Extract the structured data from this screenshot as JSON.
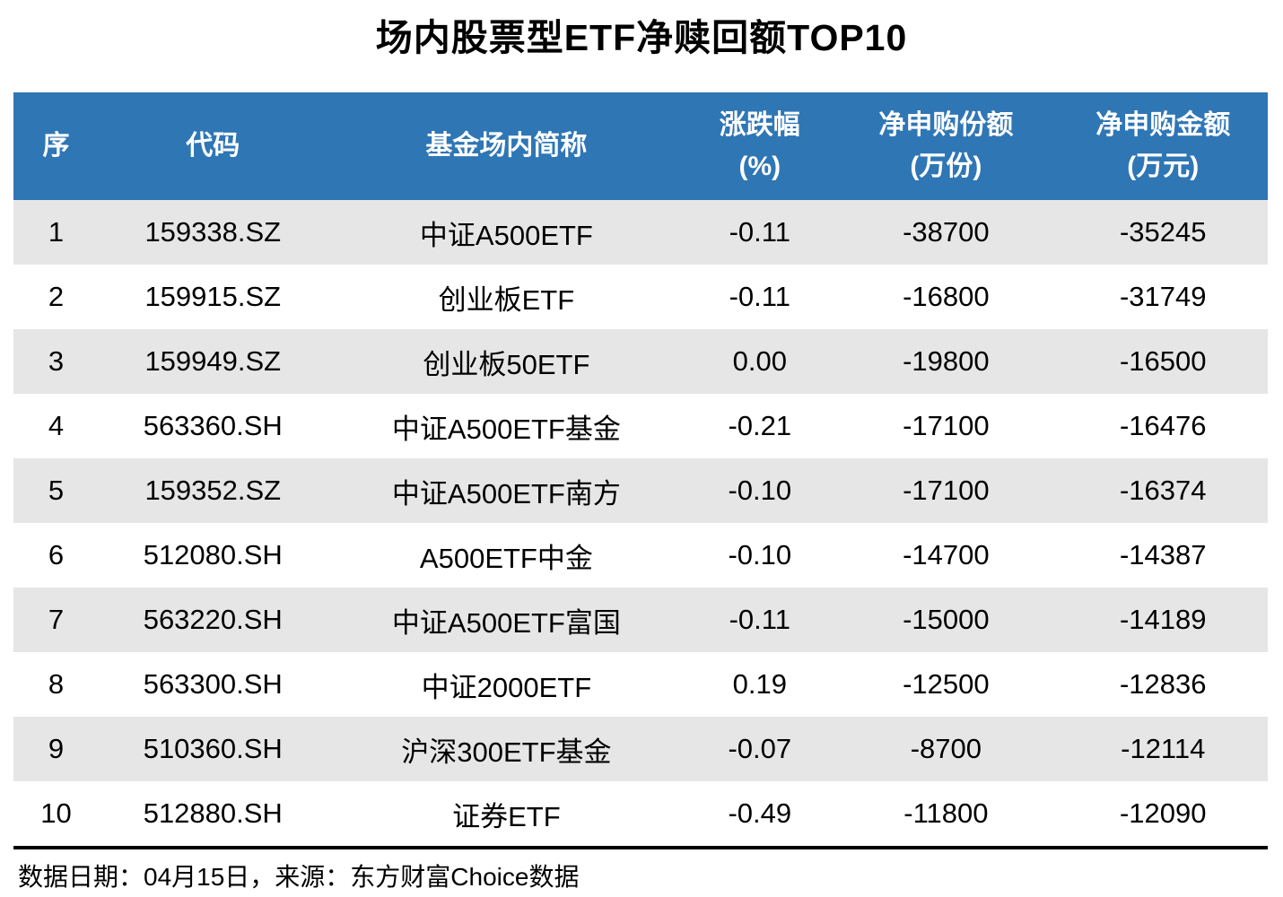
{
  "title": "场内股票型ETF净赎回额TOP10",
  "colors": {
    "header_bg": "#2F76B5",
    "header_text": "#FFFFFF",
    "stripe_bg": "#E7E6E6",
    "body_text": "#000000",
    "divider": "#000000"
  },
  "table": {
    "column_keys": [
      "rank",
      "code",
      "name",
      "change",
      "net_shares",
      "net_amount"
    ],
    "columns": [
      {
        "line1": "序",
        "line2": ""
      },
      {
        "line1": "代码",
        "line2": ""
      },
      {
        "line1": "基金场内简称",
        "line2": ""
      },
      {
        "line1": "涨跌幅",
        "line2": "(%)"
      },
      {
        "line1": "净申购份额",
        "line2": "(万份)"
      },
      {
        "line1": "净申购金额",
        "line2": "(万元)"
      }
    ],
    "rows": [
      [
        "1",
        "159338.SZ",
        "中证A500ETF",
        "-0.11",
        "-38700",
        "-35245"
      ],
      [
        "2",
        "159915.SZ",
        "创业板ETF",
        "-0.11",
        "-16800",
        "-31749"
      ],
      [
        "3",
        "159949.SZ",
        "创业板50ETF",
        "0.00",
        "-19800",
        "-16500"
      ],
      [
        "4",
        "563360.SH",
        "中证A500ETF基金",
        "-0.21",
        "-17100",
        "-16476"
      ],
      [
        "5",
        "159352.SZ",
        "中证A500ETF南方",
        "-0.10",
        "-17100",
        "-16374"
      ],
      [
        "6",
        "512080.SH",
        "A500ETF中金",
        "-0.10",
        "-14700",
        "-14387"
      ],
      [
        "7",
        "563220.SH",
        "中证A500ETF富国",
        "-0.11",
        "-15000",
        "-14189"
      ],
      [
        "8",
        "563300.SH",
        "中证2000ETF",
        "0.19",
        "-12500",
        "-12836"
      ],
      [
        "9",
        "510360.SH",
        "沪深300ETF基金",
        "-0.07",
        "-8700",
        "-12114"
      ],
      [
        "10",
        "512880.SH",
        "证券ETF",
        "-0.49",
        "-11800",
        "-12090"
      ]
    ]
  },
  "footer": {
    "note": "数据日期：04月15日，来源：东方财富Choice数据"
  },
  "chart_data": {
    "type": "table",
    "title": "场内股票型ETF净赎回额TOP10",
    "columns": [
      "序",
      "代码",
      "基金场内简称",
      "涨跌幅(%)",
      "净申购份额(万份)",
      "净申购金额(万元)"
    ],
    "rows": [
      [
        1,
        "159338.SZ",
        "中证A500ETF",
        -0.11,
        -38700,
        -35245
      ],
      [
        2,
        "159915.SZ",
        "创业板ETF",
        -0.11,
        -16800,
        -31749
      ],
      [
        3,
        "159949.SZ",
        "创业板50ETF",
        0.0,
        -19800,
        -16500
      ],
      [
        4,
        "563360.SH",
        "中证A500ETF基金",
        -0.21,
        -17100,
        -16476
      ],
      [
        5,
        "159352.SZ",
        "中证A500ETF南方",
        -0.1,
        -17100,
        -16374
      ],
      [
        6,
        "512080.SH",
        "A500ETF中金",
        -0.1,
        -14700,
        -14387
      ],
      [
        7,
        "563220.SH",
        "中证A500ETF富国",
        -0.11,
        -15000,
        -14189
      ],
      [
        8,
        "563300.SH",
        "中证2000ETF",
        0.19,
        -12500,
        -12836
      ],
      [
        9,
        "510360.SH",
        "沪深300ETF基金",
        -0.07,
        -8700,
        -12114
      ],
      [
        10,
        "512880.SH",
        "证券ETF",
        -0.49,
        -11800,
        -12090
      ]
    ],
    "source_note": "数据日期：04月15日，来源：东方财富Choice数据"
  }
}
